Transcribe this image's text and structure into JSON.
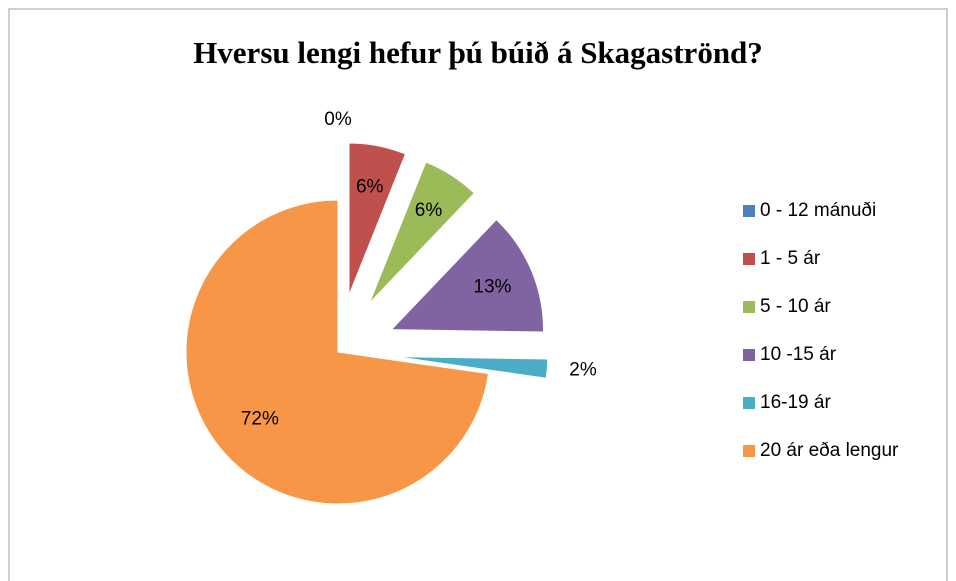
{
  "chart_data": {
    "type": "pie",
    "title": "Hversu lengi hefur þú búið á Skagaströnd?",
    "categories": [
      "0 - 12 mánuði",
      "1 - 5 ár",
      "5 - 10 ár",
      "10 -15 ár",
      "16-19 ár",
      "20 ár eða lengur"
    ],
    "values": [
      0,
      6,
      6,
      13,
      2,
      72
    ],
    "value_labels": [
      "0%",
      "6%",
      "6%",
      "13%",
      "2%",
      "72%"
    ],
    "colors": [
      "#4f81bd",
      "#c0504d",
      "#9bbb59",
      "#8064a2",
      "#4bacc6",
      "#f79646"
    ],
    "exploded": [
      true,
      true,
      true,
      true,
      true,
      false
    ],
    "legend": "right"
  }
}
